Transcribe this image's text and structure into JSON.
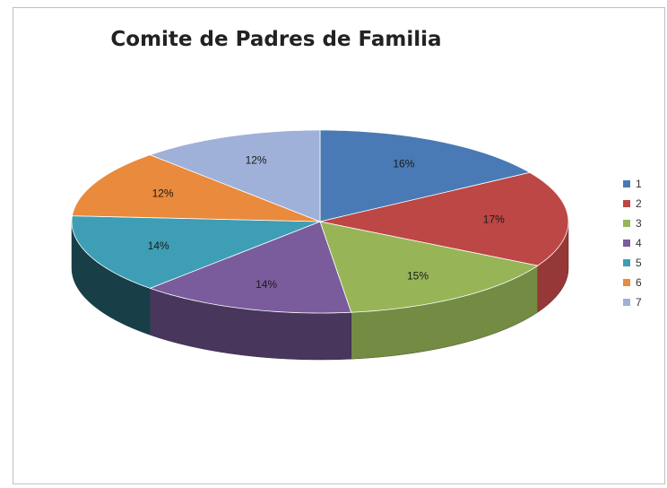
{
  "chart_data": {
    "type": "pie",
    "title": "Comite de Padres de Familia",
    "categories": [
      "1",
      "2",
      "3",
      "4",
      "5",
      "6",
      "7"
    ],
    "values": [
      16,
      17,
      15,
      14,
      14,
      12,
      12
    ],
    "data_labels": [
      "16%",
      "17%",
      "15%",
      "14%",
      "14%",
      "12%",
      "12%"
    ],
    "colors": [
      "#4a7ab5",
      "#bc4745",
      "#97b557",
      "#7a5c9c",
      "#3e9eb5",
      "#e98a3c",
      "#9fb1d8"
    ],
    "legend_position": "right",
    "style": "3d"
  }
}
